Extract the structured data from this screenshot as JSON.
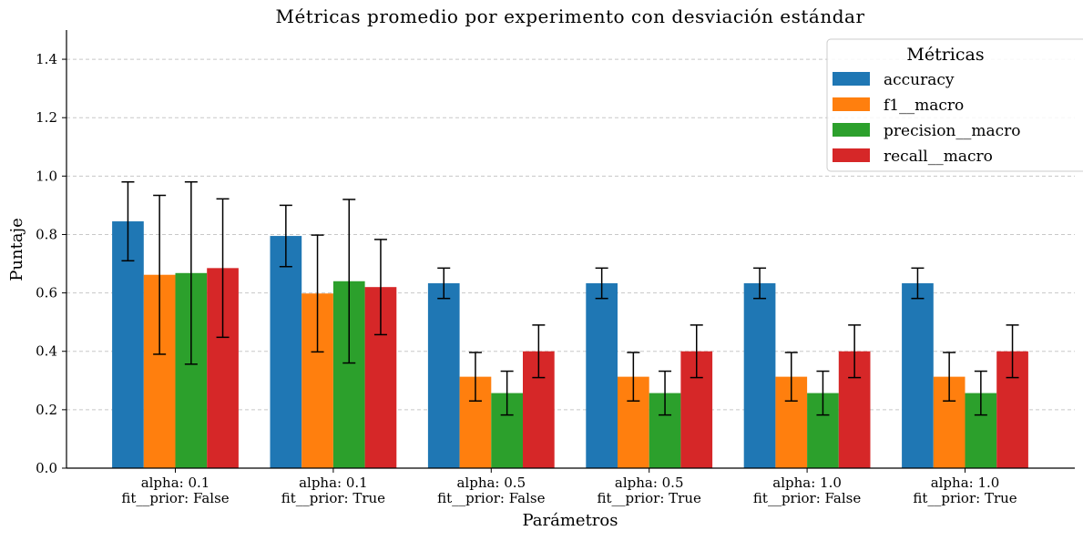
{
  "chart_data": {
    "type": "bar",
    "title": "Métricas promedio por experimento con desviación estándar",
    "xlabel": "Parámetros",
    "ylabel": "Puntaje",
    "ylim": [
      0,
      1.5
    ],
    "yticks": [
      0.0,
      0.2,
      0.4,
      0.6,
      0.8,
      1.0,
      1.2,
      1.4
    ],
    "ytick_labels": [
      "0.0",
      "0.2",
      "0.4",
      "0.6",
      "0.8",
      "1.0",
      "1.2",
      "1.4"
    ],
    "grid": "horizontal dashed",
    "legend_title": "Métricas",
    "legend_position": "top-right",
    "categories": [
      [
        "alpha: 0.1",
        "fit__prior: False"
      ],
      [
        "alpha: 0.1",
        "fit__prior: True"
      ],
      [
        "alpha: 0.5",
        "fit__prior: False"
      ],
      [
        "alpha: 0.5",
        "fit__prior: True"
      ],
      [
        "alpha: 1.0",
        "fit__prior: False"
      ],
      [
        "alpha: 1.0",
        "fit__prior: True"
      ]
    ],
    "series": [
      {
        "name": "accuracy",
        "color": "#1f77b4",
        "values": [
          0.845,
          0.795,
          0.633,
          0.633,
          0.633,
          0.633
        ],
        "errors": [
          0.135,
          0.105,
          0.052,
          0.052,
          0.052,
          0.052
        ]
      },
      {
        "name": "f1__macro",
        "color": "#ff7f0e",
        "values": [
          0.662,
          0.598,
          0.313,
          0.313,
          0.313,
          0.313
        ],
        "errors": [
          0.272,
          0.2,
          0.083,
          0.083,
          0.083,
          0.083
        ]
      },
      {
        "name": "precision__macro",
        "color": "#2ca02c",
        "values": [
          0.668,
          0.64,
          0.257,
          0.257,
          0.257,
          0.257
        ],
        "errors": [
          0.312,
          0.28,
          0.075,
          0.075,
          0.075,
          0.075
        ]
      },
      {
        "name": "recall__macro",
        "color": "#d62728",
        "values": [
          0.685,
          0.62,
          0.4,
          0.4,
          0.4,
          0.4
        ],
        "errors": [
          0.237,
          0.163,
          0.09,
          0.09,
          0.09,
          0.09
        ]
      }
    ]
  }
}
